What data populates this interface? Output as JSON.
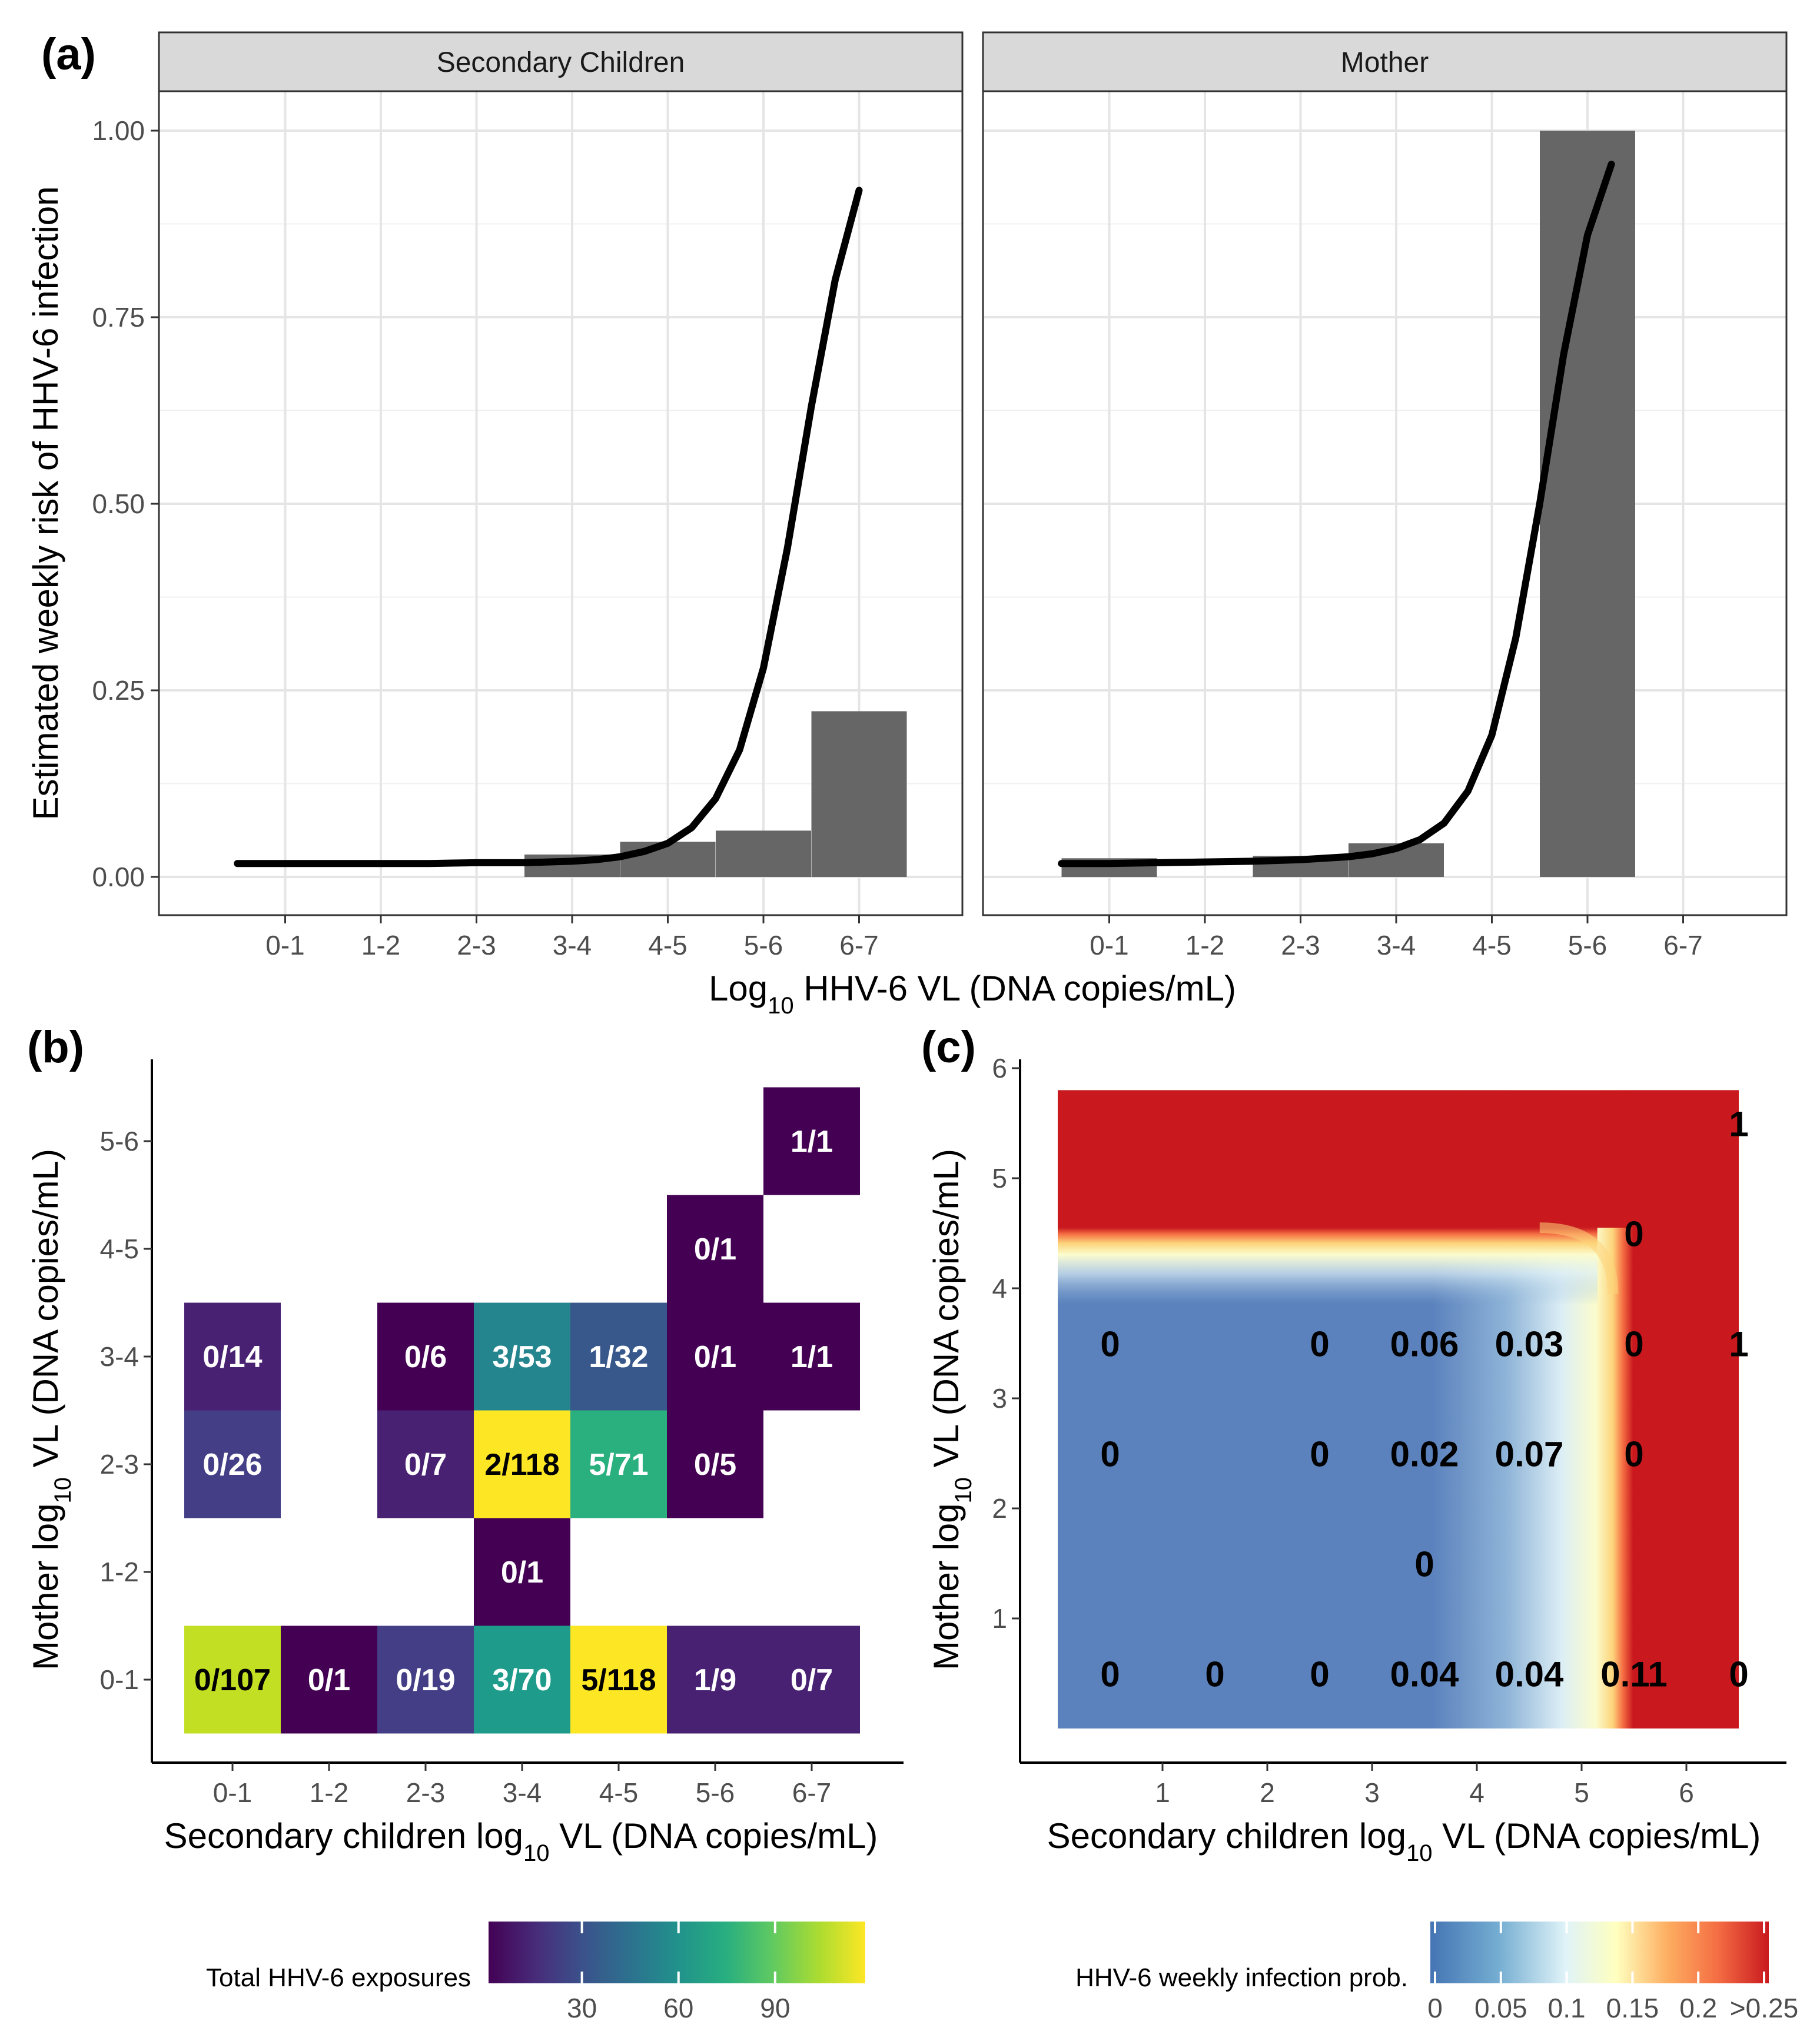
{
  "panel_labels": {
    "a": "(a)",
    "b": "(b)",
    "c": "(c)"
  },
  "colors": {
    "bar": "#666666",
    "curve": "#000000",
    "grid": "#e5e5e5",
    "strip": "#d9d9d9",
    "red": "#c9191e"
  },
  "chart_data": [
    {
      "id": "a",
      "type": "bar",
      "facets": [
        "Secondary Children",
        "Mother"
      ],
      "categories": [
        "0-1",
        "1-2",
        "2-3",
        "3-4",
        "4-5",
        "5-6",
        "6-7"
      ],
      "series": [
        {
          "name": "Secondary Children",
          "values": [
            0,
            0,
            0,
            0.03,
            0.047,
            0.062,
            0.222
          ]
        },
        {
          "name": "Mother",
          "values": [
            0.025,
            0,
            0.028,
            0.045,
            0,
            1.0,
            0
          ]
        }
      ],
      "curves": [
        {
          "name": "Secondary Children fit",
          "x": [
            -0.5,
            0,
            0.5,
            1,
            1.5,
            2,
            2.5,
            3,
            3.25,
            3.5,
            3.75,
            4,
            4.25,
            4.5,
            4.75,
            5,
            5.25,
            5.5,
            5.75,
            6
          ],
          "y": [
            0.018,
            0.018,
            0.018,
            0.018,
            0.018,
            0.019,
            0.019,
            0.021,
            0.023,
            0.027,
            0.034,
            0.045,
            0.066,
            0.105,
            0.17,
            0.28,
            0.44,
            0.63,
            0.8,
            0.92
          ]
        },
        {
          "name": "Mother fit",
          "x": [
            -0.5,
            0,
            0.5,
            1,
            1.5,
            2,
            2.5,
            2.75,
            3,
            3.25,
            3.5,
            3.75,
            4,
            4.25,
            4.5,
            4.75,
            5,
            5.25
          ],
          "y": [
            0.018,
            0.018,
            0.019,
            0.02,
            0.021,
            0.023,
            0.027,
            0.031,
            0.038,
            0.05,
            0.072,
            0.115,
            0.19,
            0.32,
            0.5,
            0.7,
            0.86,
            0.955
          ]
        }
      ],
      "ylim": [
        0,
        1
      ],
      "yticks": [
        "0.00",
        "0.25",
        "0.50",
        "0.75",
        "1.00"
      ],
      "ylabel": "Estimated weekly risk of HHV-6 infection",
      "xlabel": {
        "pre": "Log",
        "sub": "10",
        "post": " HHV-6 VL (DNA copies/mL)"
      }
    },
    {
      "id": "b",
      "type": "heatmap",
      "x_categories": [
        "0-1",
        "1-2",
        "2-3",
        "3-4",
        "4-5",
        "5-6",
        "6-7"
      ],
      "y_categories": [
        "0-1",
        "1-2",
        "2-3",
        "3-4",
        "4-5",
        "5-6"
      ],
      "cells": [
        {
          "x": "0-1",
          "y": "0-1",
          "label": "0/107",
          "total": 107
        },
        {
          "x": "1-2",
          "y": "0-1",
          "label": "0/1",
          "total": 1
        },
        {
          "x": "2-3",
          "y": "0-1",
          "label": "0/19",
          "total": 19
        },
        {
          "x": "3-4",
          "y": "0-1",
          "label": "3/70",
          "total": 70
        },
        {
          "x": "4-5",
          "y": "0-1",
          "label": "5/118",
          "total": 118
        },
        {
          "x": "5-6",
          "y": "0-1",
          "label": "1/9",
          "total": 9
        },
        {
          "x": "6-7",
          "y": "0-1",
          "label": "0/7",
          "total": 7
        },
        {
          "x": "3-4",
          "y": "1-2",
          "label": "0/1",
          "total": 1
        },
        {
          "x": "0-1",
          "y": "2-3",
          "label": "0/26",
          "total": 26
        },
        {
          "x": "2-3",
          "y": "2-3",
          "label": "0/7",
          "total": 7
        },
        {
          "x": "3-4",
          "y": "2-3",
          "label": "2/118",
          "total": 118
        },
        {
          "x": "4-5",
          "y": "2-3",
          "label": "5/71",
          "total": 71
        },
        {
          "x": "5-6",
          "y": "2-3",
          "label": "0/5",
          "total": 5
        },
        {
          "x": "0-1",
          "y": "3-4",
          "label": "0/14",
          "total": 14
        },
        {
          "x": "2-3",
          "y": "3-4",
          "label": "0/6",
          "total": 6
        },
        {
          "x": "3-4",
          "y": "3-4",
          "label": "3/53",
          "total": 53
        },
        {
          "x": "4-5",
          "y": "3-4",
          "label": "1/32",
          "total": 32
        },
        {
          "x": "5-6",
          "y": "3-4",
          "label": "0/1",
          "total": 1
        },
        {
          "x": "6-7",
          "y": "3-4",
          "label": "1/1",
          "total": 1
        },
        {
          "x": "5-6",
          "y": "4-5",
          "label": "0/1",
          "total": 1
        },
        {
          "x": "6-7",
          "y": "5-6",
          "label": "1/1",
          "total": 1
        }
      ],
      "xlabel": {
        "pre": "Secondary children log",
        "sub": "10",
        "post": " VL (DNA copies/mL)"
      },
      "ylabel": {
        "pre": "Mother log",
        "sub": "10",
        "post": " VL (DNA copies/mL)"
      },
      "legend": {
        "title": "Total HHV-6 exposures",
        "min": 1,
        "max": 118,
        "ticks": [
          30,
          60,
          90
        ]
      }
    },
    {
      "id": "c",
      "type": "heatmap",
      "xlim": [
        -0.5,
        6.7
      ],
      "ylim": [
        -0.3,
        6.1
      ],
      "data_extent": {
        "x": [
          0,
          6.5
        ],
        "y": [
          0,
          5.8
        ]
      },
      "xticks": [
        1,
        2,
        3,
        4,
        5,
        6
      ],
      "yticks": [
        1,
        2,
        3,
        4,
        5,
        6
      ],
      "labels": [
        {
          "x": 0.5,
          "y": 0.5,
          "text": "0"
        },
        {
          "x": 1.5,
          "y": 0.5,
          "text": "0"
        },
        {
          "x": 2.5,
          "y": 0.5,
          "text": "0"
        },
        {
          "x": 3.5,
          "y": 0.5,
          "text": "0.04"
        },
        {
          "x": 4.5,
          "y": 0.5,
          "text": "0.04"
        },
        {
          "x": 5.5,
          "y": 0.5,
          "text": "0.11"
        },
        {
          "x": 6.5,
          "y": 0.5,
          "text": "0"
        },
        {
          "x": 3.5,
          "y": 1.5,
          "text": "0"
        },
        {
          "x": 0.5,
          "y": 2.5,
          "text": "0"
        },
        {
          "x": 2.5,
          "y": 2.5,
          "text": "0"
        },
        {
          "x": 3.5,
          "y": 2.5,
          "text": "0.02"
        },
        {
          "x": 4.5,
          "y": 2.5,
          "text": "0.07"
        },
        {
          "x": 5.5,
          "y": 2.5,
          "text": "0"
        },
        {
          "x": 0.5,
          "y": 3.5,
          "text": "0"
        },
        {
          "x": 2.5,
          "y": 3.5,
          "text": "0"
        },
        {
          "x": 3.5,
          "y": 3.5,
          "text": "0.06"
        },
        {
          "x": 4.5,
          "y": 3.5,
          "text": "0.03"
        },
        {
          "x": 5.5,
          "y": 3.5,
          "text": "0"
        },
        {
          "x": 6.5,
          "y": 3.5,
          "text": "1"
        },
        {
          "x": 5.5,
          "y": 4.5,
          "text": "0"
        },
        {
          "x": 6.5,
          "y": 5.5,
          "text": "1"
        }
      ],
      "xlabel": {
        "pre": "Secondary children log",
        "sub": "10",
        "post": " VL (DNA copies/mL)"
      },
      "ylabel": {
        "pre": "Mother log",
        "sub": "10",
        "post": " VL (DNA copies/mL)"
      },
      "legend": {
        "title": "HHV-6 weekly infection prob.",
        "ticks": [
          "0",
          "0.05",
          "0.1",
          "0.15",
          "0.2",
          ">0.25"
        ]
      }
    }
  ]
}
